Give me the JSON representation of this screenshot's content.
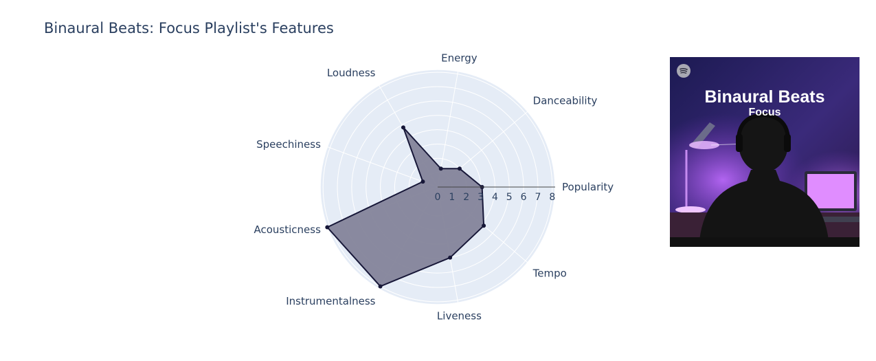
{
  "chart_data": {
    "type": "radar",
    "title": "Binaural Beats: Focus Playlist's Features",
    "categories": [
      "Popularity",
      "Danceability",
      "Energy",
      "Loudness",
      "Speechiness",
      "Acousticness",
      "Instrumentalness",
      "Liveness",
      "Tempo"
    ],
    "values": [
      3.1,
      2.0,
      1.3,
      4.8,
      1.1,
      8.2,
      8.0,
      5.0,
      4.2
    ],
    "radial_ticks": [
      "0",
      "1",
      "2",
      "3",
      "4",
      "5",
      "6",
      "7",
      "8"
    ],
    "radial_range": [
      0,
      8.2
    ],
    "grid": true,
    "colors": {
      "fill": "#84849a",
      "line": "#171738",
      "background": "#e5ecf6",
      "text": "#2a3f5f"
    }
  },
  "cover": {
    "title_line1": "Binaural Beats",
    "title_line2": "Focus",
    "logo": "spotify-icon"
  }
}
